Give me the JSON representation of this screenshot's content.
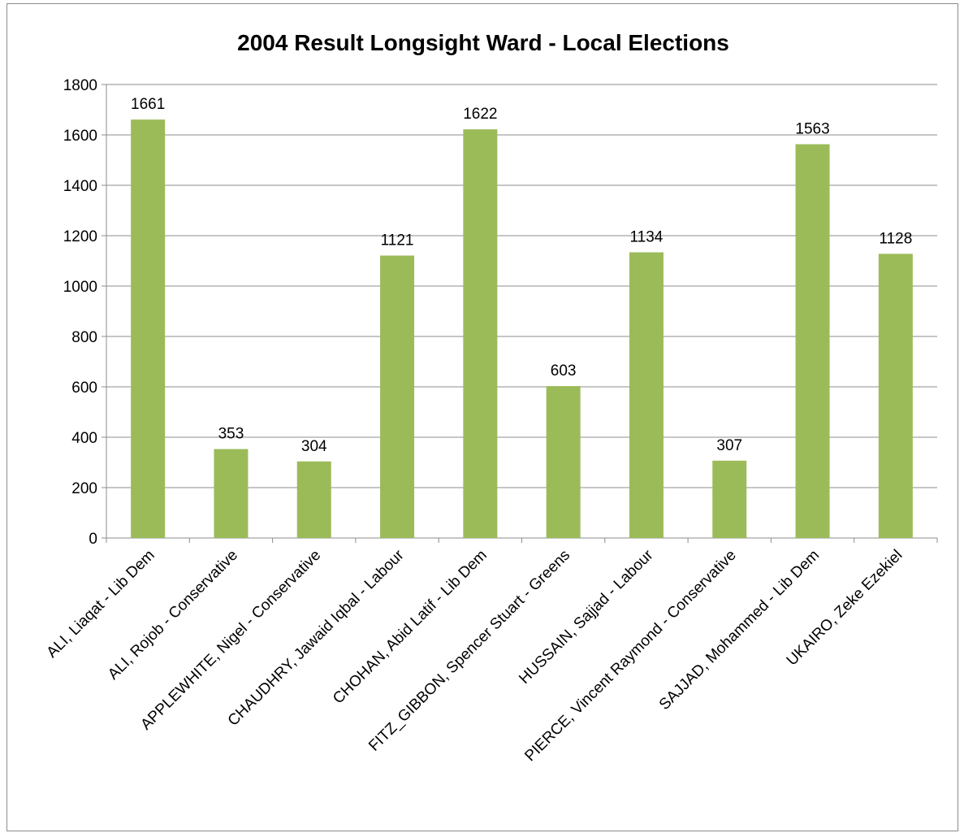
{
  "chart_data": {
    "type": "bar",
    "title": "2004 Result Longsight Ward - Local Elections",
    "xlabel": "",
    "ylabel": "",
    "ylim": [
      0,
      1800
    ],
    "yticks": [
      0,
      200,
      400,
      600,
      800,
      1000,
      1200,
      1400,
      1600,
      1800
    ],
    "grid": true,
    "legend": "none",
    "bar_color": "#9BBB59",
    "categories": [
      "ALI, Liaqat - Lib Dem",
      "ALI, Rojob - Conservative",
      "APPLEWHITE, Nigel - Conservative",
      "CHAUDHRY, Jawaid Iqbal - Labour",
      "CHOHAN, Abid Latif - Lib Dem",
      "FITZ_GIBBON, Spencer Stuart - Greens",
      "HUSSAIN, Sajjad - Labour",
      "PIERCE, Vincent Raymond - Conservative",
      "SAJJAD, Mohammed - Lib Dem",
      "UKAIRO, Zeke Ezekiel"
    ],
    "values": [
      1661,
      353,
      304,
      1121,
      1622,
      603,
      1134,
      307,
      1563,
      1128
    ]
  }
}
